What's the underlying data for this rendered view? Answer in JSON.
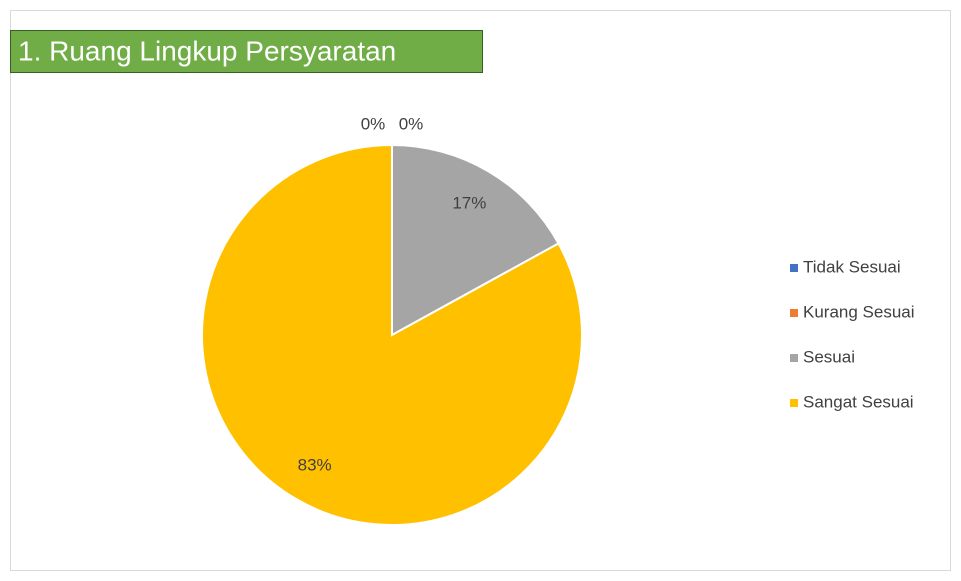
{
  "chart_data": {
    "type": "pie",
    "title": "1. Ruang Lingkup Persyaratan",
    "categories": [
      "Tidak Sesuai",
      "Kurang Sesuai",
      "Sesuai",
      "Sangat Sesuai"
    ],
    "values": [
      0,
      0,
      17,
      83
    ],
    "value_labels": [
      "0%",
      "0%",
      "17%",
      "83%"
    ],
    "colors": [
      "#4472c4",
      "#ed7d31",
      "#a5a5a5",
      "#ffc000"
    ],
    "legend": "right"
  }
}
